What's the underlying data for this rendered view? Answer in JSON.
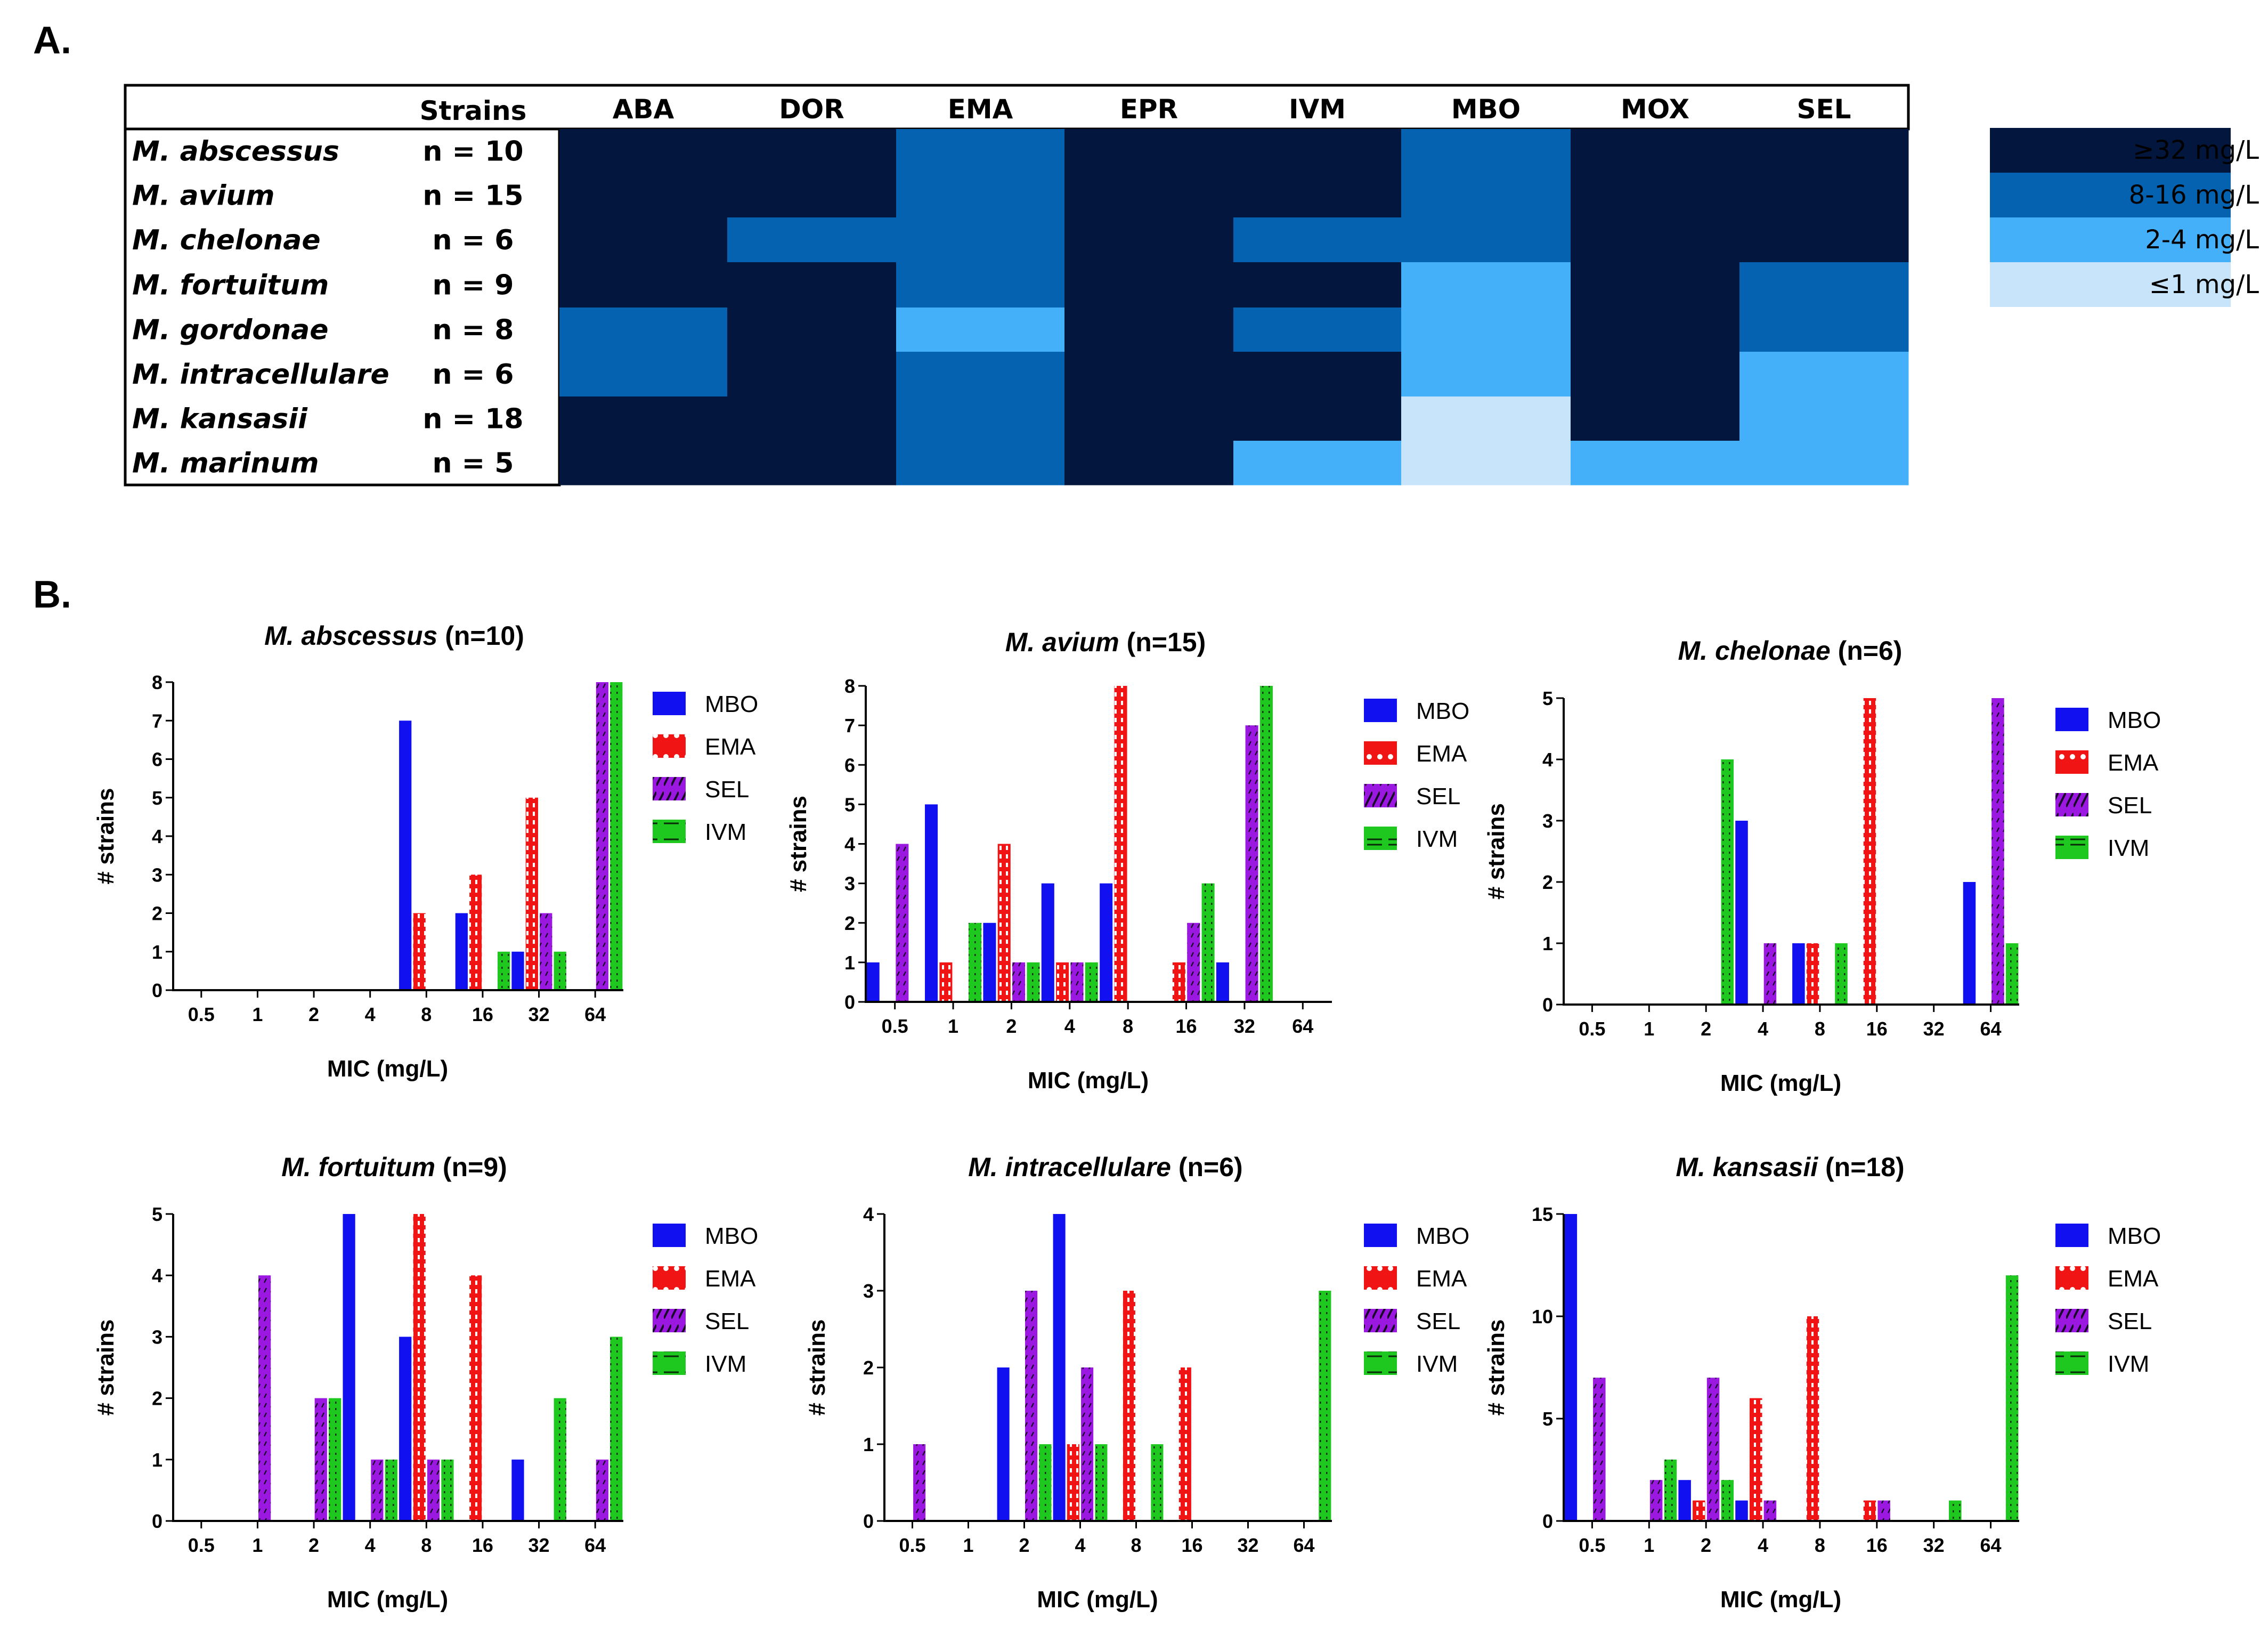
{
  "panel_a_label": "A.",
  "panel_b_label": "B.",
  "heatmap": {
    "strains_header": "Strains",
    "drugs": [
      "ABA",
      "DOR",
      "EMA",
      "EPR",
      "IVM",
      "MBO",
      "MOX",
      "SEL"
    ],
    "rows": [
      {
        "species": "M. abscessus",
        "n": "n = 10",
        "levels": [
          3,
          3,
          2,
          3,
          3,
          2,
          3,
          3
        ]
      },
      {
        "species": "M. avium",
        "n": "n = 15",
        "levels": [
          3,
          3,
          2,
          3,
          3,
          2,
          3,
          3
        ]
      },
      {
        "species": "M. chelonae",
        "n": "n = 6",
        "levels": [
          3,
          2,
          2,
          3,
          2,
          2,
          3,
          3
        ]
      },
      {
        "species": "M. fortuitum",
        "n": "n = 9",
        "levels": [
          3,
          3,
          2,
          3,
          3,
          1,
          3,
          2
        ]
      },
      {
        "species": "M. gordonae",
        "n": "n = 8",
        "levels": [
          2,
          3,
          1,
          3,
          2,
          1,
          3,
          2
        ]
      },
      {
        "species": "M. intracellulare",
        "n": "n = 6",
        "levels": [
          2,
          3,
          2,
          3,
          3,
          1,
          3,
          1
        ]
      },
      {
        "species": "M. kansasii",
        "n": "n = 18",
        "levels": [
          3,
          3,
          2,
          3,
          3,
          0,
          3,
          1
        ]
      },
      {
        "species": "M. marinum",
        "n": "n = 5",
        "levels": [
          3,
          3,
          2,
          3,
          1,
          0,
          1,
          1
        ]
      }
    ],
    "colors": [
      "#c8e4fb",
      "#45b0fa",
      "#0462b0",
      "#03163d"
    ],
    "scale_legend": [
      {
        "label": "≥32 mg/L",
        "level": 3
      },
      {
        "label": "8-16 mg/L",
        "level": 2
      },
      {
        "label": "2-4 mg/L",
        "level": 1
      },
      {
        "label": "≤1 mg/L",
        "level": 0
      }
    ]
  },
  "series_colors": {
    "MBO": "#1010f0",
    "EMA": "#f01414",
    "SEL": "#9a18e0",
    "IVM": "#1ec81e"
  },
  "chart_data": [
    {
      "type": "bar",
      "title_italic": "M. abscessus",
      "title_rest": " (n=10)",
      "xlabel": "MIC (mg/L)",
      "ylabel": "# strains",
      "categories": [
        "0.5",
        "1",
        "2",
        "4",
        "8",
        "16",
        "32",
        "64"
      ],
      "ylim": [
        0,
        8
      ],
      "yticks": [
        0,
        1,
        2,
        3,
        4,
        5,
        6,
        7,
        8
      ],
      "series": [
        {
          "name": "MBO",
          "values": [
            0,
            0,
            0,
            0,
            7,
            2,
            1,
            0
          ]
        },
        {
          "name": "EMA",
          "values": [
            0,
            0,
            0,
            0,
            2,
            3,
            5,
            0
          ]
        },
        {
          "name": "SEL",
          "values": [
            0,
            0,
            0,
            0,
            0,
            0,
            2,
            8
          ]
        },
        {
          "name": "IVM",
          "values": [
            0,
            0,
            0,
            0,
            0,
            1,
            1,
            8
          ]
        }
      ]
    },
    {
      "type": "bar",
      "title_italic": "M. avium",
      "title_rest": " (n=15)",
      "xlabel": "MIC (mg/L)",
      "ylabel": "# strains",
      "categories": [
        "0.5",
        "1",
        "2",
        "4",
        "8",
        "16",
        "32",
        "64"
      ],
      "ylim": [
        0,
        8
      ],
      "yticks": [
        0,
        1,
        2,
        3,
        4,
        5,
        6,
        7,
        8
      ],
      "series": [
        {
          "name": "MBO",
          "values": [
            1,
            5,
            2,
            3,
            3,
            0,
            1,
            0
          ]
        },
        {
          "name": "EMA",
          "values": [
            0,
            1,
            4,
            1,
            8,
            1,
            0,
            0
          ]
        },
        {
          "name": "SEL",
          "values": [
            4,
            0,
            1,
            1,
            0,
            2,
            7,
            0
          ]
        },
        {
          "name": "IVM",
          "values": [
            0,
            2,
            1,
            1,
            0,
            3,
            8,
            0
          ]
        }
      ]
    },
    {
      "type": "bar",
      "title_italic": "M. chelonae",
      "title_rest": " (n=6)",
      "xlabel": "MIC (mg/L)",
      "ylabel": "# strains",
      "categories": [
        "0.5",
        "1",
        "2",
        "4",
        "8",
        "16",
        "32",
        "64"
      ],
      "ylim": [
        0,
        5
      ],
      "yticks": [
        0,
        1,
        2,
        3,
        4,
        5
      ],
      "series": [
        {
          "name": "MBO",
          "values": [
            0,
            0,
            0,
            3,
            1,
            0,
            0,
            2
          ]
        },
        {
          "name": "EMA",
          "values": [
            0,
            0,
            0,
            0,
            1,
            5,
            0,
            0
          ]
        },
        {
          "name": "SEL",
          "values": [
            0,
            0,
            0,
            1,
            0,
            0,
            0,
            5
          ]
        },
        {
          "name": "IVM",
          "values": [
            0,
            0,
            4,
            0,
            1,
            0,
            0,
            1
          ]
        }
      ]
    },
    {
      "type": "bar",
      "title_italic": "M. fortuitum",
      "title_rest": " (n=9)",
      "xlabel": "MIC (mg/L)",
      "ylabel": "# strains",
      "categories": [
        "0.5",
        "1",
        "2",
        "4",
        "8",
        "16",
        "32",
        "64"
      ],
      "ylim": [
        0,
        5
      ],
      "yticks": [
        0,
        1,
        2,
        3,
        4,
        5
      ],
      "series": [
        {
          "name": "MBO",
          "values": [
            0,
            0,
            0,
            5,
            3,
            0,
            1,
            0
          ]
        },
        {
          "name": "EMA",
          "values": [
            0,
            0,
            0,
            0,
            5,
            4,
            0,
            0
          ]
        },
        {
          "name": "SEL",
          "values": [
            0,
            4,
            2,
            1,
            1,
            0,
            0,
            1
          ]
        },
        {
          "name": "IVM",
          "values": [
            0,
            0,
            2,
            1,
            1,
            0,
            2,
            3
          ]
        }
      ]
    },
    {
      "type": "bar",
      "title_italic": "M. intracellulare",
      "title_rest": " (n=6)",
      "xlabel": "MIC (mg/L)",
      "ylabel": "# strains",
      "categories": [
        "0.5",
        "1",
        "2",
        "4",
        "8",
        "16",
        "32",
        "64"
      ],
      "ylim": [
        0,
        4
      ],
      "yticks": [
        0,
        1,
        2,
        3,
        4
      ],
      "series": [
        {
          "name": "MBO",
          "values": [
            0,
            0,
            2,
            4,
            0,
            0,
            0,
            0
          ]
        },
        {
          "name": "EMA",
          "values": [
            0,
            0,
            0,
            1,
            3,
            2,
            0,
            0
          ]
        },
        {
          "name": "SEL",
          "values": [
            1,
            0,
            3,
            2,
            0,
            0,
            0,
            0
          ]
        },
        {
          "name": "IVM",
          "values": [
            0,
            0,
            1,
            1,
            1,
            0,
            0,
            3
          ]
        }
      ]
    },
    {
      "type": "bar",
      "title_italic": "M. kansasii",
      "title_rest": " (n=18)",
      "xlabel": "MIC (mg/L)",
      "ylabel": "# strains",
      "categories": [
        "0.5",
        "1",
        "2",
        "4",
        "8",
        "16",
        "32",
        "64"
      ],
      "ylim": [
        0,
        15
      ],
      "yticks": [
        0,
        5,
        10,
        15
      ],
      "series": [
        {
          "name": "MBO",
          "values": [
            15,
            0,
            2,
            1,
            0,
            0,
            0,
            0
          ]
        },
        {
          "name": "EMA",
          "values": [
            0,
            0,
            1,
            6,
            10,
            1,
            0,
            0
          ]
        },
        {
          "name": "SEL",
          "values": [
            7,
            2,
            7,
            1,
            0,
            1,
            0,
            0
          ]
        },
        {
          "name": "IVM",
          "values": [
            0,
            3,
            2,
            0,
            0,
            0,
            1,
            12
          ]
        }
      ]
    }
  ]
}
